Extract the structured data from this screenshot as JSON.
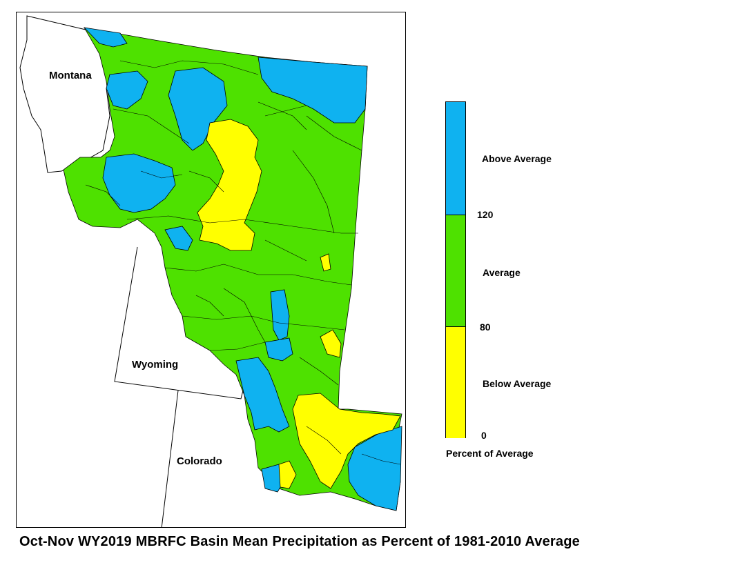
{
  "map": {
    "states": [
      "Montana",
      "Wyoming",
      "Colorado"
    ],
    "colors": {
      "above": "#0fb2f0",
      "average": "#4ee100",
      "below": "#ffff00",
      "outline": "#000000"
    }
  },
  "legend": {
    "categories": [
      {
        "label": "Above Average",
        "range": [
          120,
          null
        ],
        "color": "#0fb2f0"
      },
      {
        "label": "Average",
        "range": [
          80,
          120
        ],
        "color": "#4ee100"
      },
      {
        "label": "Below Average",
        "range": [
          0,
          80
        ],
        "color": "#ffff00"
      }
    ],
    "ticks": [
      "120",
      "80",
      "0"
    ],
    "title": "Percent of Average"
  },
  "title": "Oct-Nov WY2019 MBRFC Basin Mean Precipitation as Percent of 1981-2010 Average"
}
